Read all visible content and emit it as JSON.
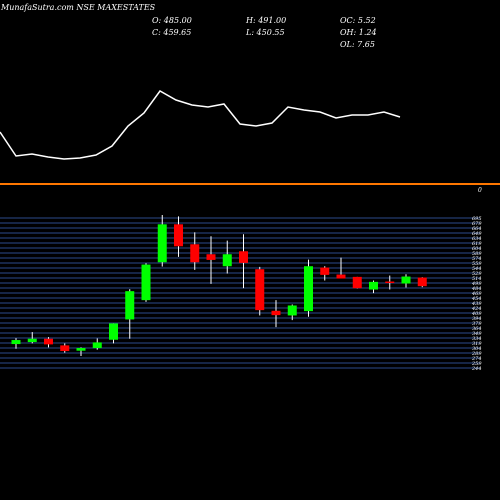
{
  "header": {
    "title": "MunafaSutra.com NSE MAXESTATES",
    "open": "O: 485.00",
    "close": "C: 459.65",
    "high": "H: 491.00",
    "low": "L: 450.55",
    "oc": "OC: 5.52",
    "oh": "OH: 1.24",
    "ol": "OL: 7.65"
  },
  "indicator_zero_label": "0",
  "colors": {
    "background": "#000000",
    "up": "#00ff00",
    "down": "#ff0000",
    "grid": "#2c4a8a",
    "line": "#ffffff",
    "separator": "#ff7700"
  },
  "chart_data": [
    {
      "type": "line",
      "name": "indicator",
      "x": [
        0,
        1,
        2,
        3,
        4,
        5,
        6,
        7,
        8,
        9,
        10,
        11,
        12,
        13,
        14,
        15,
        16,
        17,
        18,
        19,
        20,
        21,
        22,
        23,
        24,
        25
      ],
      "values": [
        36,
        12,
        14,
        11,
        9,
        10,
        13,
        22,
        42,
        55,
        77,
        68,
        63,
        61,
        64,
        44,
        42,
        45,
        61,
        58,
        56,
        50,
        53,
        53,
        56,
        51
      ]
    },
    {
      "type": "candlestick",
      "ylim": [
        244,
        695
      ],
      "ytick_labels": [
        "244",
        "259",
        "274",
        "289",
        "304",
        "319",
        "334",
        "349",
        "364",
        "379",
        "394",
        "409",
        "424",
        "439",
        "454",
        "469",
        "484",
        "499",
        "514",
        "529",
        "544",
        "559",
        "574",
        "589",
        "604",
        "619",
        "634",
        "649",
        "664",
        "679",
        "695"
      ],
      "candles": [
        {
          "o": 316,
          "h": 334,
          "l": 302,
          "c": 328
        },
        {
          "o": 322,
          "h": 352,
          "l": 318,
          "c": 332
        },
        {
          "o": 332,
          "h": 337,
          "l": 306,
          "c": 315
        },
        {
          "o": 312,
          "h": 318,
          "l": 290,
          "c": 295
        },
        {
          "o": 296,
          "h": 306,
          "l": 280,
          "c": 304
        },
        {
          "o": 304,
          "h": 333,
          "l": 299,
          "c": 321
        },
        {
          "o": 329,
          "h": 378,
          "l": 318,
          "c": 378
        },
        {
          "o": 390,
          "h": 481,
          "l": 332,
          "c": 475
        },
        {
          "o": 448,
          "h": 559,
          "l": 443,
          "c": 555
        },
        {
          "o": 562,
          "h": 704,
          "l": 549,
          "c": 676
        },
        {
          "o": 676,
          "h": 700,
          "l": 578,
          "c": 610
        },
        {
          "o": 616,
          "h": 652,
          "l": 539,
          "c": 562
        },
        {
          "o": 586,
          "h": 640,
          "l": 497,
          "c": 569
        },
        {
          "o": 550,
          "h": 627,
          "l": 528,
          "c": 586
        },
        {
          "o": 595,
          "h": 646,
          "l": 484,
          "c": 560
        },
        {
          "o": 541,
          "h": 548,
          "l": 402,
          "c": 418
        },
        {
          "o": 416,
          "h": 448,
          "l": 367,
          "c": 403
        },
        {
          "o": 402,
          "h": 435,
          "l": 388,
          "c": 432
        },
        {
          "o": 415,
          "h": 570,
          "l": 398,
          "c": 550
        },
        {
          "o": 546,
          "h": 550,
          "l": 507,
          "c": 524
        },
        {
          "o": 525,
          "h": 576,
          "l": 516,
          "c": 513
        },
        {
          "o": 518,
          "h": 514,
          "l": 483,
          "c": 484
        },
        {
          "o": 480,
          "h": 507,
          "l": 469,
          "c": 503
        },
        {
          "o": 504,
          "h": 522,
          "l": 480,
          "c": 502
        },
        {
          "o": 498,
          "h": 526,
          "l": 486,
          "c": 519
        },
        {
          "o": 516,
          "h": 517,
          "l": 487,
          "c": 490
        }
      ]
    }
  ]
}
